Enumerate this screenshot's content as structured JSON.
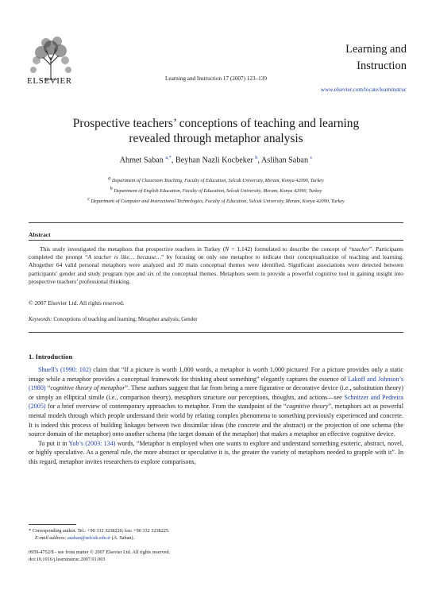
{
  "header": {
    "publisher": "ELSEVIER",
    "citation": "Learning and Instruction 17 (2007) 123–139",
    "journal_name_line1": "Learning and",
    "journal_name_line2": "Instruction",
    "url": "www.elsevier.com/locate/learninstruc"
  },
  "article": {
    "title_line1": "Prospective teachers’ conceptions of teaching and learning",
    "title_line2": "revealed through metaphor analysis",
    "authors": [
      {
        "name": "Ahmet Saban",
        "sup": "a,*"
      },
      {
        "name": "Beyhan Nazli Kocbeker",
        "sup": "b"
      },
      {
        "name": "Aslihan Saban",
        "sup": "c"
      }
    ],
    "affiliations": [
      {
        "sup": "a",
        "text": "Department of Classroom Teaching, Faculty of Education, Selcuk University, Meram, Konya 42090, Turkey"
      },
      {
        "sup": "b",
        "text": "Department of English Education, Faculty of Education, Selcuk University, Meram, Konya 42090, Turkey"
      },
      {
        "sup": "c",
        "text": "Department of Computer and Instructional Technologies, Faculty of Education, Selcuk University, Meram, Konya 42090, Turkey"
      }
    ]
  },
  "abstract": {
    "heading": "Abstract",
    "p1": "This study investigated the metaphors that prospective teachers in Turkey (",
    "p1_n": "N",
    "p1_b": " = 1,142) formulated to describe the concept of “",
    "p1_teacher": "teacher",
    "p1_c": "”. Participants completed the prompt “",
    "p1_prompt": "A teacher is like… because…",
    "p1_d": "” by focusing on only one metaphor to indicate their conceptualization of teaching and learning. Altogether 64 valid personal metaphors were analyzed and 10 main conceptual themes were identified. Significant associations were detected between participants’ gender and study program type and six of the conceptual themes. Metaphors seem to provide a powerful cognitive tool in gaining insight into prospective teachers’ professional thinking.",
    "copyright": "© 2007 Elsevier Ltd. All rights reserved.",
    "keywords_label": "Keywords:",
    "keywords": " Conceptions of teaching and learning; Metaphor analysis; Gender"
  },
  "intro": {
    "heading": "1.  Introduction",
    "ref_shuell": "Shuell's (1990: 102)",
    "p1a": " claim that “If a picture is worth 1,000 words, a metaphor is worth 1,000 pictures! For a picture provides only a static image while a metaphor provides a conceptual framework for thinking about something” elegantly captures the essence of ",
    "ref_lakoff": "Lakoff and Johnson’s (1980)",
    "p1b": " “",
    "p1_cogtheory": "cognitive theory of metaphor",
    "p1c": "”. These authors suggest that far from being a mere figurative or decorative device (i.e., substitution theory) or simply an elliptical simile (i.e., comparison theory), metaphors structure our perceptions, thoughts, and actions—see ",
    "ref_schnitzer": "Schnitzer and Pedreira (2005)",
    "p1d": " for a brief overview of contemporary approaches to metaphor. From the standpoint of the “",
    "p1_cogtheory2": "cognitive theory",
    "p1e": "”, metaphors act as powerful mental models through which people understand their world by relating complex phenomena to something previously experienced and concrete. It is indeed this process of building linkages between two dissimilar ideas (the concrete and the abstract) or the projection of one schema (the source domain of the metaphor) onto another schema (the target domain of the metaphor) that makes a metaphor an effective cognitive device.",
    "p2a": "To put it in ",
    "ref_yob": "Yob’s (2003: 134)",
    "p2b": " words, “Metaphor is employed when one wants to explore and understand something esoteric, abstract, novel, or highly speculative. As a general rule, the more abstract or speculative it is, the greater the variety of metaphors needed to grapple with it”. In this regard, metaphor invites researchers to explore comparisons,"
  },
  "footnote": {
    "line1": "* Corresponding author. Tel.: +90 332 3238220; fax: +90 332 3238225.",
    "email_label": "E-mail address:",
    "email": "asaban@selcuk.edu.tr",
    "email_suffix": " (A. Saban)."
  },
  "footer": {
    "issn": "0959-4752/$ - see front matter © 2007 Elsevier Ltd. All rights reserved.",
    "doi": "doi:10.1016/j.learninstruc.2007.01.003"
  }
}
